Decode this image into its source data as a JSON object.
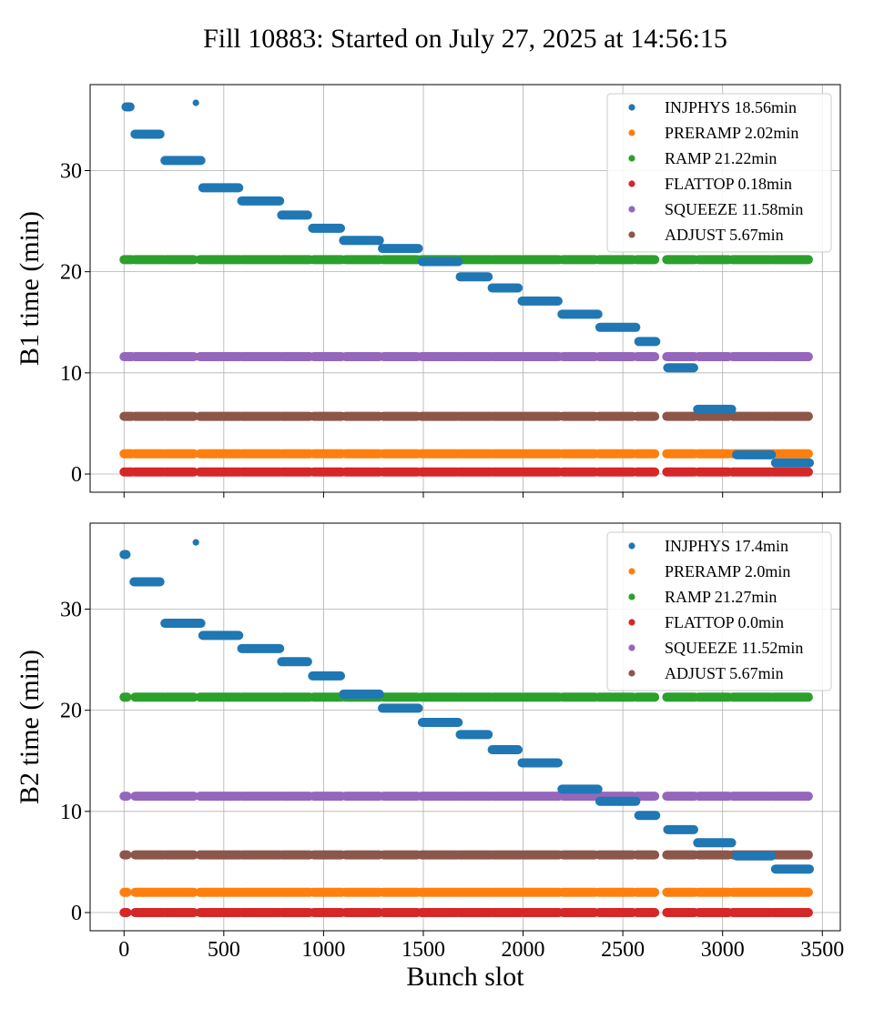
{
  "title": "Fill 10883: Started on July 27, 2025 at 14:56:15",
  "colors": {
    "INJPHYS": "#1f77b4",
    "PRERAMP": "#ff7f0e",
    "RAMP": "#2ca02c",
    "FLATTOP": "#d62728",
    "SQUEEZE": "#9467bd",
    "ADJUST": "#8c564b"
  },
  "chart_data": [
    {
      "type": "scatter",
      "ylabel": "B1 time (min)",
      "xlabel": "",
      "xlim": [
        -170,
        3590
      ],
      "ylim": [
        -1.8,
        38.5
      ],
      "grid": true,
      "legend_position": "top-right",
      "xticks": [
        0,
        500,
        1000,
        1500,
        2000,
        2500,
        3000,
        3500
      ],
      "yticks": [
        0,
        10,
        20,
        30
      ],
      "legend": [
        {
          "phase": "INJPHYS",
          "label": "INJPHYS 18.56min"
        },
        {
          "phase": "PRERAMP",
          "label": "PRERAMP 2.02min"
        },
        {
          "phase": "RAMP",
          "label": "RAMP 21.22min"
        },
        {
          "phase": "FLATTOP",
          "label": "FLATTOP 0.18min"
        },
        {
          "phase": "SQUEEZE",
          "label": "SQUEEZE 11.58min"
        },
        {
          "phase": "ADJUST",
          "label": "ADJUST 5.67min"
        }
      ],
      "flat_series": [
        {
          "phase": "RAMP",
          "y": 21.2
        },
        {
          "phase": "SQUEEZE",
          "y": 11.6
        },
        {
          "phase": "ADJUST",
          "y": 5.7
        },
        {
          "phase": "PRERAMP",
          "y": 2.0
        },
        {
          "phase": "FLATTOP",
          "y": 0.2
        }
      ],
      "segments": [
        {
          "x": [
            0,
            40
          ]
        },
        {
          "x": [
            55,
            200
          ]
        },
        {
          "x": [
            210,
            350
          ]
        },
        {
          "x": [
            380,
            580
          ]
        },
        {
          "x": [
            590,
            780
          ]
        },
        {
          "x": [
            790,
            930
          ]
        },
        {
          "x": [
            950,
            1090
          ]
        },
        {
          "x": [
            1110,
            1280
          ]
        },
        {
          "x": [
            1300,
            1470
          ]
        },
        {
          "x": [
            1490,
            1670
          ]
        },
        {
          "x": [
            1680,
            1840
          ]
        },
        {
          "x": [
            1850,
            1990
          ]
        },
        {
          "x": [
            2000,
            2180
          ]
        },
        {
          "x": [
            2200,
            2360
          ]
        },
        {
          "x": [
            2380,
            2550
          ]
        },
        {
          "x": [
            2570,
            2660
          ]
        },
        {
          "x": [
            2720,
            2860
          ]
        },
        {
          "x": [
            2880,
            3030
          ]
        },
        {
          "x": [
            3050,
            3240
          ]
        },
        {
          "x": [
            3250,
            3430
          ]
        }
      ],
      "injphys": [
        {
          "x": [
            10,
            30
          ],
          "y": 36.3,
          "size": "large"
        },
        {
          "x": [
            360,
            360
          ],
          "y": 36.7,
          "size": "small"
        },
        {
          "x": [
            55,
            180
          ],
          "y": 33.6,
          "size": "large"
        },
        {
          "x": [
            205,
            385
          ],
          "y": 31.0,
          "size": "large"
        },
        {
          "x": [
            395,
            575
          ],
          "y": 28.3,
          "size": "large"
        },
        {
          "x": [
            590,
            780
          ],
          "y": 27.0,
          "size": "large"
        },
        {
          "x": [
            790,
            920
          ],
          "y": 25.6,
          "size": "large"
        },
        {
          "x": [
            945,
            1085
          ],
          "y": 24.3,
          "size": "large"
        },
        {
          "x": [
            1100,
            1280
          ],
          "y": 23.1,
          "size": "large"
        },
        {
          "x": [
            1295,
            1475
          ],
          "y": 22.3,
          "size": "large"
        },
        {
          "x": [
            1495,
            1675
          ],
          "y": 21.0,
          "size": "large"
        },
        {
          "x": [
            1685,
            1825
          ],
          "y": 19.5,
          "size": "large"
        },
        {
          "x": [
            1845,
            1975
          ],
          "y": 18.4,
          "size": "large"
        },
        {
          "x": [
            1995,
            2175
          ],
          "y": 17.1,
          "size": "large"
        },
        {
          "x": [
            2195,
            2375
          ],
          "y": 15.8,
          "size": "large"
        },
        {
          "x": [
            2385,
            2565
          ],
          "y": 14.5,
          "size": "large"
        },
        {
          "x": [
            2580,
            2665
          ],
          "y": 13.1,
          "size": "large"
        },
        {
          "x": [
            2725,
            2855
          ],
          "y": 10.5,
          "size": "large"
        },
        {
          "x": [
            2875,
            3045
          ],
          "y": 6.4,
          "size": "large"
        },
        {
          "x": [
            3070,
            3245
          ],
          "y": 1.9,
          "size": "large"
        },
        {
          "x": [
            3265,
            3435
          ],
          "y": 1.1,
          "size": "large"
        }
      ]
    },
    {
      "type": "scatter",
      "ylabel": "B2 time (min)",
      "xlabel": "Bunch slot",
      "xlim": [
        -170,
        3590
      ],
      "ylim": [
        -1.8,
        38.5
      ],
      "grid": true,
      "legend_position": "top-right",
      "xticks": [
        0,
        500,
        1000,
        1500,
        2000,
        2500,
        3000,
        3500
      ],
      "yticks": [
        0,
        10,
        20,
        30
      ],
      "legend": [
        {
          "phase": "INJPHYS",
          "label": "INJPHYS 17.4min"
        },
        {
          "phase": "PRERAMP",
          "label": "PRERAMP 2.0min"
        },
        {
          "phase": "RAMP",
          "label": "RAMP 21.27min"
        },
        {
          "phase": "FLATTOP",
          "label": "FLATTOP 0.0min"
        },
        {
          "phase": "SQUEEZE",
          "label": "SQUEEZE 11.52min"
        },
        {
          "phase": "ADJUST",
          "label": "ADJUST 5.67min"
        }
      ],
      "flat_series": [
        {
          "phase": "RAMP",
          "y": 21.3
        },
        {
          "phase": "SQUEEZE",
          "y": 11.5
        },
        {
          "phase": "ADJUST",
          "y": 5.7
        },
        {
          "phase": "PRERAMP",
          "y": 2.0
        },
        {
          "phase": "FLATTOP",
          "y": 0.0
        }
      ],
      "segments": [
        {
          "x": [
            0,
            15
          ]
        },
        {
          "x": [
            55,
            200
          ]
        },
        {
          "x": [
            210,
            350
          ]
        },
        {
          "x": [
            380,
            580
          ]
        },
        {
          "x": [
            590,
            780
          ]
        },
        {
          "x": [
            790,
            930
          ]
        },
        {
          "x": [
            950,
            1090
          ]
        },
        {
          "x": [
            1110,
            1280
          ]
        },
        {
          "x": [
            1300,
            1470
          ]
        },
        {
          "x": [
            1490,
            1670
          ]
        },
        {
          "x": [
            1680,
            1840
          ]
        },
        {
          "x": [
            1850,
            1990
          ]
        },
        {
          "x": [
            2000,
            2180
          ]
        },
        {
          "x": [
            2200,
            2360
          ]
        },
        {
          "x": [
            2380,
            2550
          ]
        },
        {
          "x": [
            2570,
            2660
          ]
        },
        {
          "x": [
            2720,
            2860
          ]
        },
        {
          "x": [
            2880,
            3030
          ]
        },
        {
          "x": [
            3050,
            3240
          ]
        },
        {
          "x": [
            3250,
            3430
          ]
        }
      ],
      "injphys": [
        {
          "x": [
            0,
            10
          ],
          "y": 35.4,
          "size": "large"
        },
        {
          "x": [
            360,
            360
          ],
          "y": 36.6,
          "size": "small"
        },
        {
          "x": [
            50,
            180
          ],
          "y": 32.7,
          "size": "large"
        },
        {
          "x": [
            205,
            385
          ],
          "y": 28.6,
          "size": "large"
        },
        {
          "x": [
            395,
            575
          ],
          "y": 27.4,
          "size": "large"
        },
        {
          "x": [
            590,
            780
          ],
          "y": 26.1,
          "size": "large"
        },
        {
          "x": [
            790,
            920
          ],
          "y": 24.8,
          "size": "large"
        },
        {
          "x": [
            945,
            1085
          ],
          "y": 23.4,
          "size": "large"
        },
        {
          "x": [
            1100,
            1280
          ],
          "y": 21.6,
          "size": "large"
        },
        {
          "x": [
            1295,
            1475
          ],
          "y": 20.2,
          "size": "large"
        },
        {
          "x": [
            1495,
            1675
          ],
          "y": 18.8,
          "size": "large"
        },
        {
          "x": [
            1685,
            1825
          ],
          "y": 17.6,
          "size": "large"
        },
        {
          "x": [
            1845,
            1975
          ],
          "y": 16.1,
          "size": "large"
        },
        {
          "x": [
            1995,
            2175
          ],
          "y": 14.8,
          "size": "large"
        },
        {
          "x": [
            2195,
            2375
          ],
          "y": 12.2,
          "size": "large"
        },
        {
          "x": [
            2385,
            2565
          ],
          "y": 11.0,
          "size": "large"
        },
        {
          "x": [
            2580,
            2665
          ],
          "y": 9.6,
          "size": "large"
        },
        {
          "x": [
            2725,
            2855
          ],
          "y": 8.2,
          "size": "large"
        },
        {
          "x": [
            2875,
            3045
          ],
          "y": 6.9,
          "size": "large"
        },
        {
          "x": [
            3070,
            3245
          ],
          "y": 5.6,
          "size": "large"
        },
        {
          "x": [
            3265,
            3435
          ],
          "y": 4.3,
          "size": "large"
        }
      ]
    }
  ]
}
